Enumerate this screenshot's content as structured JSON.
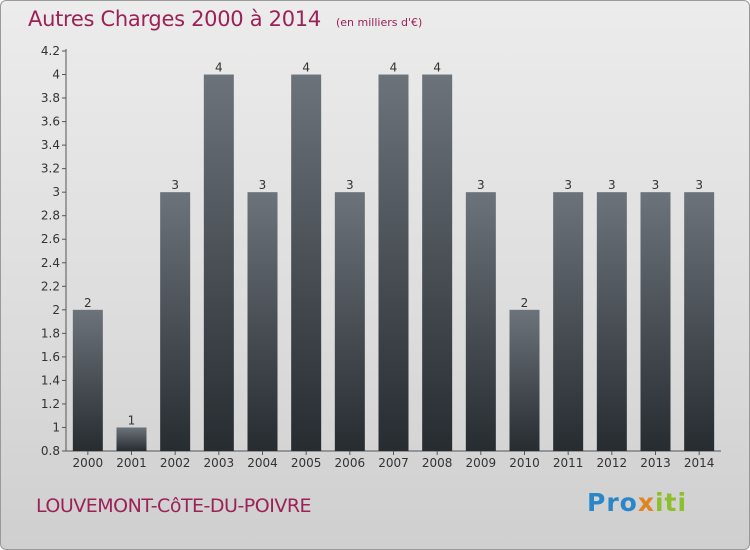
{
  "header": {
    "title": "Autres Charges 2000 à 2014",
    "unit": "(en milliers d'€)"
  },
  "footer": {
    "location": "LOUVEMONT-CôTE-DU-POIVRE",
    "logo_text": "Proxiti"
  },
  "colors": {
    "title": "#9b2157",
    "bar_top": "#6c737a",
    "bar_bottom": "#272c31",
    "logo_blue": "#2a86c7",
    "logo_orange": "#e0841f",
    "logo_green": "#8cbf2a"
  },
  "chart_data": {
    "type": "bar",
    "title": "Autres Charges 2000 à 2014",
    "subtitle": "(en milliers d'€)",
    "categories": [
      "2000",
      "2001",
      "2002",
      "2003",
      "2004",
      "2005",
      "2006",
      "2007",
      "2008",
      "2009",
      "2010",
      "2011",
      "2012",
      "2013",
      "2014"
    ],
    "values": [
      2,
      1,
      3,
      4,
      3,
      4,
      3,
      4,
      4,
      3,
      2,
      3,
      3,
      3,
      3
    ],
    "bar_top_values": [
      2,
      1,
      3,
      4,
      3,
      4,
      3,
      4,
      4,
      3,
      2,
      3,
      3,
      3,
      3
    ],
    "data_labels": [
      "2",
      "1",
      "3",
      "4",
      "3",
      "4",
      "3",
      "4",
      "4",
      "3",
      "2",
      "3",
      "3",
      "3",
      "3"
    ],
    "yticks": [
      "0.8",
      "1",
      "1.2",
      "1.4",
      "1.6",
      "1.8",
      "2",
      "2.2",
      "2.4",
      "2.6",
      "2.8",
      "3",
      "3.2",
      "3.4",
      "3.6",
      "3.8",
      "4",
      "4.2"
    ],
    "ylim": [
      0.8,
      4.2
    ],
    "grid": false,
    "legend": "none"
  }
}
